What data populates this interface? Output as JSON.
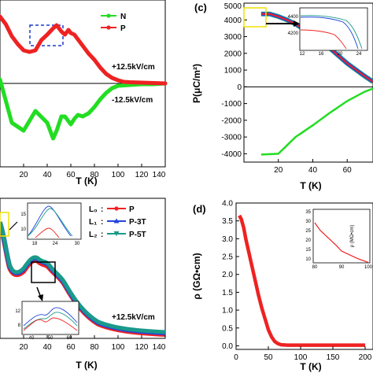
{
  "chart_data": [
    {
      "type": "line",
      "panel": "",
      "xlabel": "T (K)",
      "ylabel": "",
      "xlim": [
        0,
        140
      ],
      "xticks": [
        20,
        40,
        60,
        80,
        100,
        120,
        140
      ],
      "series": [
        {
          "name": "N",
          "color": "#22dd22",
          "x": [
            0,
            10,
            20,
            30,
            40,
            45,
            48,
            52,
            55,
            58,
            60,
            63,
            66,
            70,
            75,
            80,
            85,
            90,
            95,
            100,
            110,
            120,
            130,
            140
          ],
          "y": [
            0.05,
            -0.5,
            -0.6,
            -0.35,
            -0.5,
            -0.7,
            -0.6,
            -0.42,
            -0.42,
            -0.48,
            -0.52,
            -0.45,
            -0.4,
            -0.42,
            -0.38,
            -0.3,
            -0.2,
            -0.12,
            -0.06,
            -0.03,
            -0.02,
            -0.01,
            -0.01,
            0
          ]
        },
        {
          "name": "P",
          "color": "#ee2222",
          "x": [
            0,
            5,
            10,
            15,
            20,
            25,
            30,
            35,
            40,
            45,
            48,
            52,
            55,
            58,
            60,
            63,
            66,
            70,
            75,
            80,
            85,
            90,
            95,
            100,
            105,
            110,
            120,
            130,
            140
          ],
          "y": [
            0.85,
            0.75,
            0.6,
            0.5,
            0.42,
            0.4,
            0.42,
            0.55,
            0.62,
            0.7,
            0.74,
            0.66,
            0.62,
            0.68,
            0.64,
            0.62,
            0.56,
            0.48,
            0.38,
            0.3,
            0.2,
            0.12,
            0.07,
            0.04,
            0.02,
            0.015,
            0.01,
            0.005,
            0
          ]
        }
      ],
      "annotations": [
        "+12.5kV/cm",
        "-12.5kV/cm"
      ],
      "legend": "top-right"
    },
    {
      "type": "line",
      "panel": "(c)",
      "xlabel": "T (K)",
      "ylabel": "P(μC/m²)",
      "xlim": [
        0,
        75
      ],
      "ylim": [
        -4500,
        5000
      ],
      "yticks": [
        5000,
        4000,
        3000,
        2000,
        1000,
        0,
        -1000,
        -2000,
        -3000,
        -4000
      ],
      "xticks": [
        20,
        40,
        60
      ],
      "series": [
        {
          "name": "",
          "color": "#ee2222",
          "x": [
            10,
            15,
            20,
            25,
            30,
            40,
            50,
            60,
            70,
            75
          ],
          "y": [
            4350,
            4350,
            4200,
            4000,
            3750,
            3100,
            2300,
            1400,
            650,
            300
          ]
        },
        {
          "name": "",
          "color": "#22dd22",
          "x": [
            10,
            20,
            25,
            30,
            40,
            50,
            60,
            70,
            75
          ],
          "y": [
            -4050,
            -4000,
            -3500,
            -3000,
            -2300,
            -1550,
            -850,
            -300,
            -100
          ]
        }
      ],
      "inset": {
        "yticks": [
          4400,
          4200
        ],
        "xticks": [
          12,
          16,
          20,
          24
        ]
      }
    },
    {
      "type": "line",
      "panel": "",
      "xlabel": "T (K)",
      "ylabel": "",
      "xlim": [
        0,
        140
      ],
      "xticks": [
        20,
        40,
        60,
        80,
        100,
        120,
        140
      ],
      "legend_labels": [
        "L₀",
        "L₁",
        "L₂"
      ],
      "series": [
        {
          "name": "P",
          "color": "#ee2222"
        },
        {
          "name": "P-3T",
          "color": "#2244dd"
        },
        {
          "name": "P-5T",
          "color": "#1a9a8a"
        }
      ],
      "annotations": [
        "+12.5kV/cm"
      ],
      "inset_top": {
        "yticks": [
          15,
          10
        ],
        "xticks": [
          18,
          24,
          30
        ]
      },
      "inset_bottom": {
        "yticks": [
          12,
          8
        ],
        "xticks": [
          40,
          50,
          60
        ]
      }
    },
    {
      "type": "line",
      "panel": "(d)",
      "xlabel": "T (K)",
      "ylabel": "ρ (GΩ•cm)",
      "xlim": [
        0,
        200
      ],
      "ylim": [
        -0.1,
        4.0
      ],
      "yticks": [
        0.0,
        0.5,
        1.0,
        1.5,
        2.0,
        2.5,
        3.0,
        3.5,
        4.0
      ],
      "xticks": [
        0,
        50,
        100,
        150,
        200
      ],
      "series": [
        {
          "name": "",
          "color": "#ee2222",
          "x": [
            5,
            8,
            12,
            15,
            20,
            25,
            30,
            35,
            40,
            45,
            50,
            55,
            60,
            65,
            70,
            80,
            100,
            120,
            150,
            180,
            200
          ],
          "y": [
            3.65,
            3.55,
            3.3,
            3.0,
            2.6,
            2.2,
            1.8,
            1.4,
            1.05,
            0.75,
            0.45,
            0.25,
            0.12,
            0.06,
            0.03,
            0.02,
            0.02,
            0.02,
            0.02,
            0.02,
            0.02
          ]
        }
      ],
      "inset": {
        "ylabel": "ρ (MΩ•cm)",
        "yticks": [
          35,
          30,
          25,
          20,
          15,
          10
        ],
        "xticks": [
          80,
          90,
          100
        ],
        "x": [
          80,
          82,
          85,
          88,
          90,
          93,
          96,
          100
        ],
        "y": [
          30,
          26,
          22,
          18,
          15,
          13,
          11,
          9
        ]
      }
    }
  ]
}
